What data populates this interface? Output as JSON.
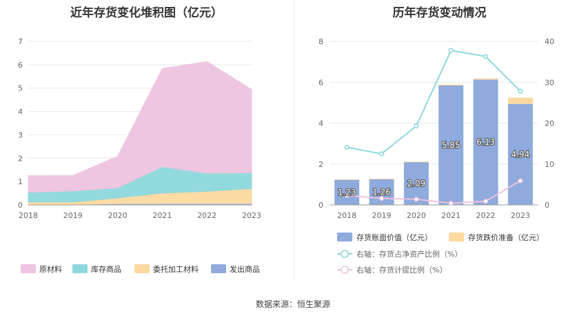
{
  "left": {
    "title": "近年存货变化堆积图（亿元）",
    "legend": [
      "原材料",
      "库存商品",
      "委托加工材料",
      "发出商品"
    ]
  },
  "right": {
    "title": "历年存货变动情况",
    "legend": [
      "存货账面价值（亿元）",
      "存货跌价准备（亿元）",
      "右轴：存货占净资产比例（%）",
      "右轴：存货计提比例（%）"
    ]
  },
  "source": "数据来源：恒生聚源",
  "chart_data": [
    {
      "type": "area",
      "stacked": true,
      "title": "近年存货变化堆积图（亿元）",
      "x": [
        "2018",
        "2019",
        "2020",
        "2021",
        "2022",
        "2023"
      ],
      "ylim": [
        0,
        7
      ],
      "yticks": [
        0,
        1,
        2,
        3,
        4,
        5,
        6,
        7
      ],
      "grid": true,
      "legend_position": "bottom",
      "series": [
        {
          "name": "发出商品",
          "color": "#8faadc",
          "values": [
            0.02,
            0.02,
            0.05,
            0.06,
            0.06,
            0.06
          ]
        },
        {
          "name": "委托加工材料",
          "color": "#fdd9a0",
          "values": [
            0.1,
            0.1,
            0.25,
            0.45,
            0.52,
            0.64
          ]
        },
        {
          "name": "库存商品",
          "color": "#8dd8dc",
          "values": [
            0.42,
            0.48,
            0.43,
            1.13,
            0.78,
            0.68
          ]
        },
        {
          "name": "原材料",
          "color": "#eec3e0",
          "values": [
            0.71,
            0.66,
            1.35,
            4.2,
            4.77,
            3.56
          ]
        }
      ]
    },
    {
      "type": "bar",
      "stacked": true,
      "title": "历年存货变动情况",
      "categories": [
        "2018",
        "2019",
        "2020",
        "2021",
        "2022",
        "2023"
      ],
      "ylim": [
        0,
        8
      ],
      "yticks": [
        0,
        2,
        4,
        6,
        8
      ],
      "y2lim": [
        0,
        40
      ],
      "y2ticks": [
        0,
        10,
        20,
        30,
        40
      ],
      "grid": true,
      "legend_position": "bottom",
      "series": [
        {
          "name": "存货账面价值（亿元）",
          "axis": "left",
          "kind": "bar",
          "color": "#8faadc",
          "values": [
            1.23,
            1.26,
            2.09,
            5.85,
            6.13,
            4.94
          ],
          "labels": [
            "1.23",
            "1.26",
            "2.09",
            "5.85",
            "6.13",
            "4.94"
          ]
        },
        {
          "name": "存货跌价准备（亿元）",
          "axis": "left",
          "kind": "bar",
          "color": "#fdd9a0",
          "values": [
            0.02,
            0.02,
            0.03,
            0.04,
            0.06,
            0.31
          ]
        },
        {
          "name": "右轴：存货占净资产比例（%）",
          "axis": "right",
          "kind": "line",
          "color": "#8dd8dc",
          "values": [
            14.1,
            12.5,
            19.3,
            37.8,
            36.3,
            27.8
          ]
        },
        {
          "name": "右轴：存货计提比例（%）",
          "axis": "right",
          "kind": "line",
          "color": "#eec3e0",
          "values": [
            2.3,
            1.6,
            1.4,
            0.4,
            0.9,
            5.9
          ]
        }
      ]
    }
  ]
}
